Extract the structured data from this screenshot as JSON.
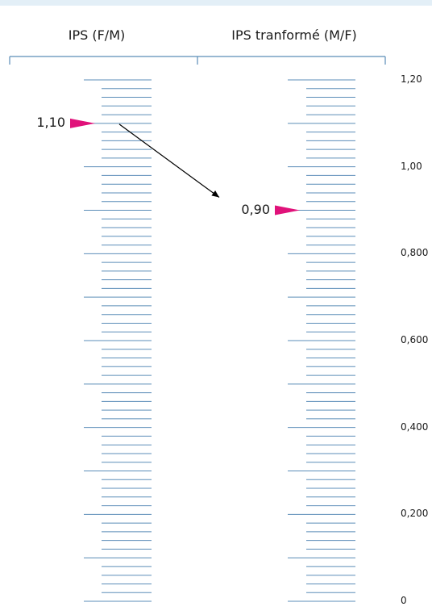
{
  "headers": {
    "left": "IPS (F/M)",
    "right": "IPS tranformé (M/F)"
  },
  "colors": {
    "ticks": "#5b8db8",
    "bracket": "#5b8db8",
    "marker": "#e0127a",
    "arrow": "#000000",
    "band": "#e3eff7"
  },
  "chart_data": {
    "type": "scale",
    "axis_range": [
      0,
      1.2
    ],
    "major_step": 0.1,
    "minor_step": 0.02,
    "tick_labels": [
      {
        "value": 1.2,
        "label": "1,20"
      },
      {
        "value": 1.0,
        "label": "1,00"
      },
      {
        "value": 0.8,
        "label": "0,800"
      },
      {
        "value": 0.6,
        "label": "0,600"
      },
      {
        "value": 0.4,
        "label": "0,400"
      },
      {
        "value": 0.2,
        "label": "0,200"
      },
      {
        "value": 0.0,
        "label": "0"
      }
    ],
    "markers": [
      {
        "scale": "left",
        "value": 1.1,
        "label": "1,10"
      },
      {
        "scale": "right",
        "value": 0.9,
        "label": "0,90"
      }
    ]
  }
}
